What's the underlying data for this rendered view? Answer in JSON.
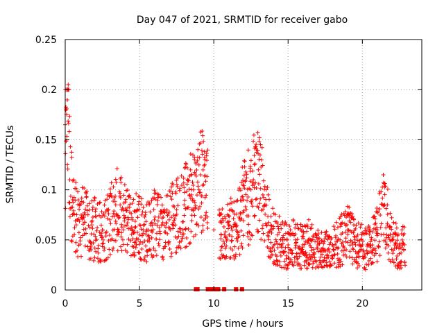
{
  "chart_data": {
    "type": "scatter",
    "title": "Day 047 of 2021, SRMTID for receiver gabo",
    "xlabel": "GPS time / hours",
    "ylabel": "SRMTID / TECUs",
    "xlim": [
      0,
      24
    ],
    "ylim": [
      0,
      0.25
    ],
    "x_ticks": [
      0,
      5,
      10,
      15,
      20
    ],
    "x_tick_labels": [
      "0",
      "5",
      "10",
      "15",
      "20"
    ],
    "y_ticks": [
      0,
      0.05,
      0.1,
      0.15,
      0.2,
      0.25
    ],
    "y_tick_labels": [
      "0",
      "0.05",
      "0.1",
      "0.15",
      "0.2",
      "0.25"
    ],
    "grid": true,
    "marker": "plus",
    "color": "#ff0000",
    "series": [
      {
        "name": "SRMTID",
        "note": "dense scatter of ~2500 samples; approximate envelope sampled at selected hours",
        "x": [
          0.0,
          0.1,
          0.2,
          0.3,
          0.5,
          0.8,
          1.2,
          1.8,
          2.5,
          3.0,
          3.4,
          3.8,
          4.5,
          5.0,
          5.5,
          6.0,
          6.5,
          7.0,
          7.5,
          8.0,
          8.5,
          9.0,
          9.4,
          10.0,
          10.5,
          11.0,
          11.5,
          12.0,
          12.5,
          13.0,
          13.3,
          13.8,
          14.5,
          15.0,
          15.5,
          16.0,
          16.5,
          17.0,
          17.5,
          18.0,
          18.5,
          19.0,
          19.5,
          20.0,
          20.5,
          21.0,
          21.5,
          22.0,
          22.5
        ],
        "y": [
          0.165,
          0.175,
          0.205,
          0.11,
          0.09,
          0.07,
          0.075,
          0.065,
          0.06,
          0.07,
          0.085,
          0.08,
          0.07,
          0.065,
          0.06,
          0.07,
          0.065,
          0.07,
          0.08,
          0.085,
          0.095,
          0.1,
          0.13,
          0.06,
          0.055,
          0.065,
          0.06,
          0.09,
          0.1,
          0.12,
          0.095,
          0.06,
          0.05,
          0.045,
          0.05,
          0.045,
          0.05,
          0.045,
          0.04,
          0.045,
          0.05,
          0.06,
          0.05,
          0.045,
          0.045,
          0.06,
          0.085,
          0.05,
          0.045
        ]
      }
    ],
    "gap_markers_x": [
      8.8,
      8.9,
      9.6,
      9.8,
      10.0,
      10.1,
      10.3,
      10.7,
      11.5,
      11.9
    ]
  }
}
